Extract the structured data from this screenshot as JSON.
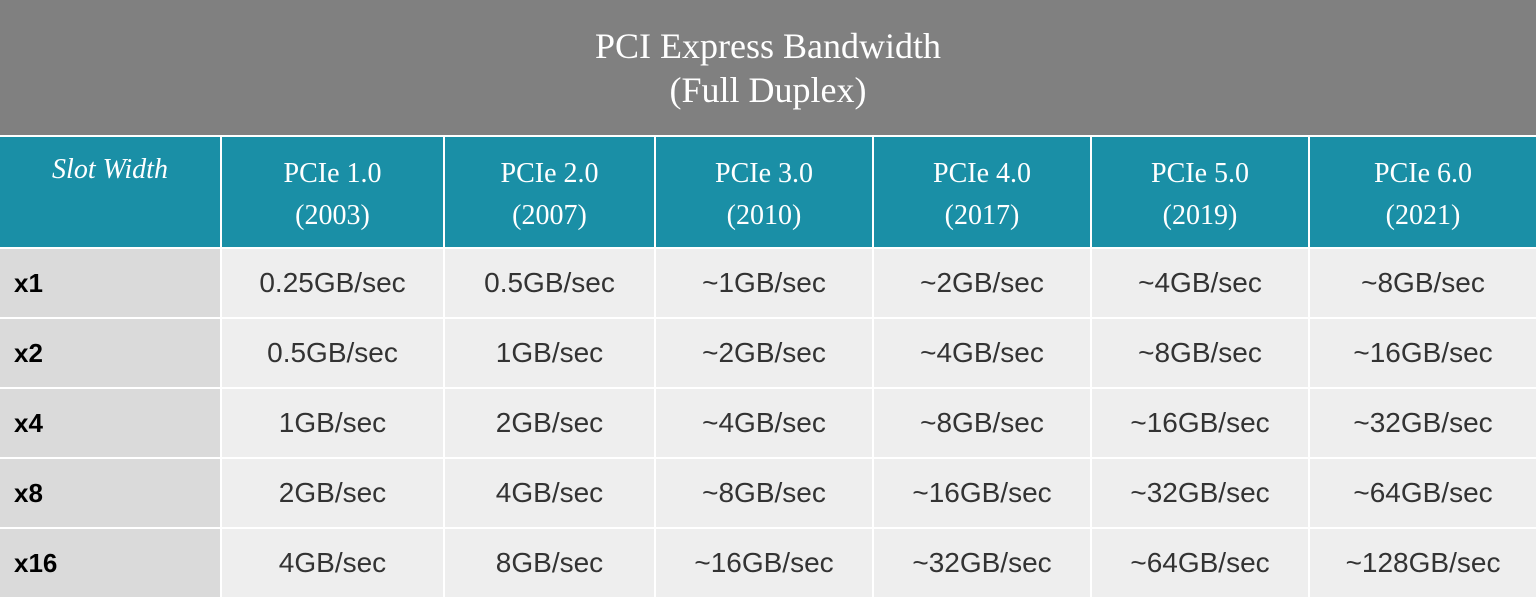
{
  "header": {
    "title": "PCI Express Bandwidth",
    "subtitle": "(Full Duplex)"
  },
  "table": {
    "corner": "Slot Width",
    "columns": [
      {
        "name": "PCIe 1.0",
        "year": "(2003)"
      },
      {
        "name": "PCIe 2.0",
        "year": "(2007)"
      },
      {
        "name": "PCIe 3.0",
        "year": "(2010)"
      },
      {
        "name": "PCIe 4.0",
        "year": "(2017)"
      },
      {
        "name": "PCIe 5.0",
        "year": "(2019)"
      },
      {
        "name": "PCIe 6.0",
        "year": "(2021)"
      }
    ],
    "rows": [
      {
        "label": "x1",
        "cells": [
          "0.25GB/sec",
          "0.5GB/sec",
          "~1GB/sec",
          "~2GB/sec",
          "~4GB/sec",
          "~8GB/sec"
        ]
      },
      {
        "label": "x2",
        "cells": [
          "0.5GB/sec",
          "1GB/sec",
          "~2GB/sec",
          "~4GB/sec",
          "~8GB/sec",
          "~16GB/sec"
        ]
      },
      {
        "label": "x4",
        "cells": [
          "1GB/sec",
          "2GB/sec",
          "~4GB/sec",
          "~8GB/sec",
          "~16GB/sec",
          "~32GB/sec"
        ]
      },
      {
        "label": "x8",
        "cells": [
          "2GB/sec",
          "4GB/sec",
          "~8GB/sec",
          "~16GB/sec",
          "~32GB/sec",
          "~64GB/sec"
        ]
      },
      {
        "label": "x16",
        "cells": [
          "4GB/sec",
          "8GB/sec",
          "~16GB/sec",
          "~32GB/sec",
          "~64GB/sec",
          "~128GB/sec"
        ]
      }
    ]
  }
}
